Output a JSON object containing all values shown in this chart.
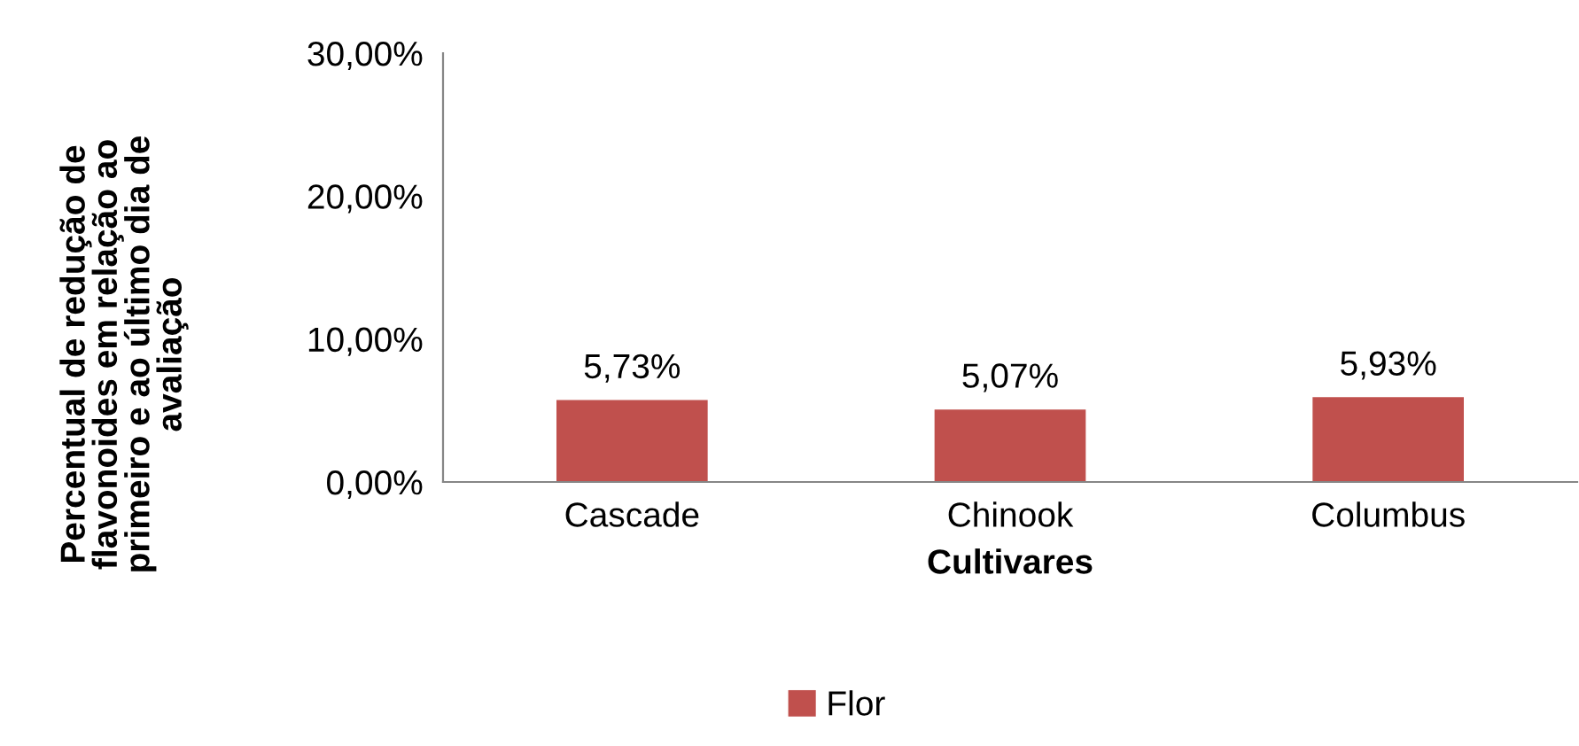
{
  "chart_data": {
    "type": "bar",
    "xlabel": "Cultivares",
    "ylabel": "Percentual de redução de\nflavonoides em relação ao\nprimeiro e ao último dia de\navaliação",
    "categories": [
      "Cascade",
      "Chinook",
      "Columbus"
    ],
    "series": [
      {
        "name": "Flor",
        "color": "#c0504d",
        "values": [
          5.73,
          5.07,
          5.93
        ],
        "value_labels": [
          "5,73%",
          "5,07%",
          "5,93%"
        ]
      }
    ],
    "ylim": [
      0,
      30
    ],
    "yticks": [
      {
        "value": 0,
        "label": "0,00%"
      },
      {
        "value": 10,
        "label": "10,00%"
      },
      {
        "value": 20,
        "label": "20,00%"
      },
      {
        "value": 30,
        "label": "30,00%"
      }
    ],
    "grid": false,
    "legend": "bottom"
  }
}
